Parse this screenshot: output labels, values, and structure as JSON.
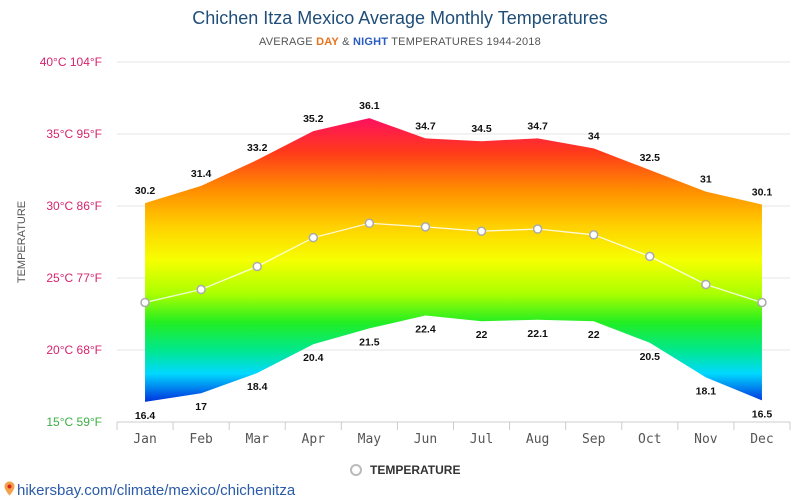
{
  "colors": {
    "day": "#e8731a",
    "night": "#2a5bbf",
    "title": "#1f4e79"
  },
  "legend": {
    "label": "TEMPERATURE"
  },
  "source": {
    "url_text": "hikersbay.com/climate/mexico/chichenitza"
  },
  "subtitle": {
    "prefix": "AVERAGE ",
    "day": "DAY",
    "amp": " & ",
    "night": "NIGHT",
    "suffix": " TEMPERATURES 1944-2018"
  },
  "chart_data": {
    "type": "area",
    "title": "Chichen Itza Mexico Average Monthly Temperatures",
    "ylabel": "TEMPERATURE",
    "categories": [
      "Jan",
      "Feb",
      "Mar",
      "Apr",
      "May",
      "Jun",
      "Jul",
      "Aug",
      "Sep",
      "Oct",
      "Nov",
      "Dec"
    ],
    "ylim": [
      15,
      40
    ],
    "yticks": [
      {
        "value": 40,
        "label": "40°C 104°F"
      },
      {
        "value": 35,
        "label": "35°C 95°F"
      },
      {
        "value": 30,
        "label": "30°C 86°F"
      },
      {
        "value": 25,
        "label": "25°C 77°F"
      },
      {
        "value": 20,
        "label": "20°C 68°F"
      },
      {
        "value": 15,
        "label": "15°C 59°F"
      }
    ],
    "series": [
      {
        "name": "Day",
        "values": [
          30.2,
          31.4,
          33.2,
          35.2,
          36.1,
          34.7,
          34.5,
          34.7,
          34,
          32.5,
          31,
          30.1
        ]
      },
      {
        "name": "Night",
        "values": [
          16.4,
          17,
          18.4,
          20.4,
          21.5,
          22.4,
          22,
          22.1,
          22,
          20.5,
          18.1,
          16.5
        ]
      },
      {
        "name": "Temperature",
        "values": [
          23.3,
          24.2,
          25.8,
          27.8,
          28.8,
          28.55,
          28.25,
          28.4,
          28,
          26.5,
          24.55,
          23.3
        ]
      }
    ],
    "legend": [
      "Temperature"
    ]
  }
}
